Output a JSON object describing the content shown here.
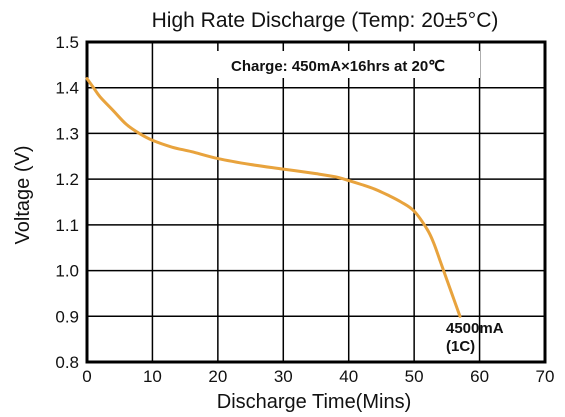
{
  "chart_data": {
    "type": "line",
    "title": "High Rate Discharge (Temp: 20±5°C)",
    "xlabel": "Discharge Time(Mins)",
    "ylabel": "Voltage (V)",
    "xlim": [
      0,
      70
    ],
    "ylim": [
      0.8,
      1.5
    ],
    "x_ticks": [
      "0",
      "10",
      "20",
      "30",
      "40",
      "50",
      "60",
      "70"
    ],
    "y_ticks": [
      "0.8",
      "0.9",
      "1.0",
      "1.1",
      "1.2",
      "1.3",
      "1.4",
      "1.5"
    ],
    "grid": true,
    "annotation": "Charge: 450mA×16hrs at 20℃",
    "series": [
      {
        "label_lines": [
          "4500mA",
          "(1C)"
        ],
        "color": "#E8A33D",
        "x": [
          0,
          1,
          2,
          4,
          6,
          8,
          10,
          13,
          16,
          20,
          25,
          30,
          35,
          38,
          40,
          42,
          44,
          46,
          48,
          50,
          52,
          53,
          54,
          55,
          56,
          57
        ],
        "y": [
          1.42,
          1.4,
          1.38,
          1.35,
          1.32,
          1.3,
          1.285,
          1.27,
          1.26,
          1.245,
          1.232,
          1.222,
          1.212,
          1.205,
          1.197,
          1.188,
          1.178,
          1.165,
          1.15,
          1.13,
          1.09,
          1.06,
          1.02,
          0.98,
          0.94,
          0.9
        ]
      }
    ]
  }
}
